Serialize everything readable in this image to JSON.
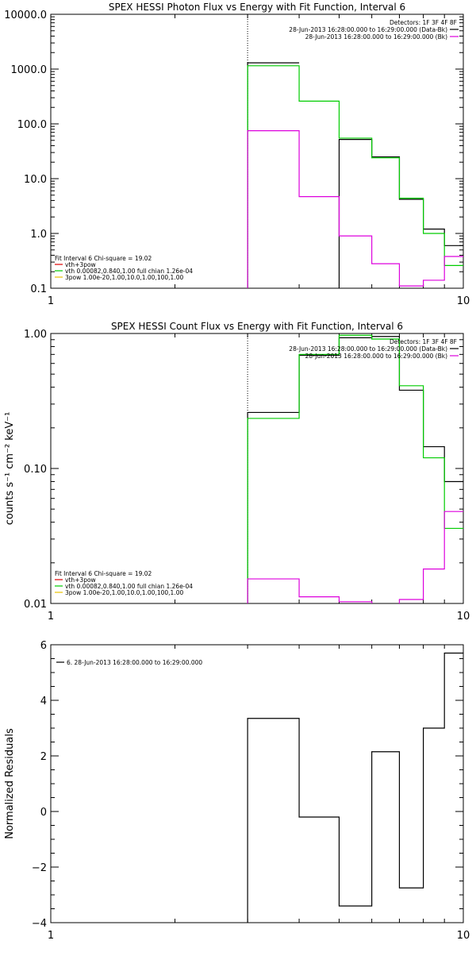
{
  "chart_data": [
    {
      "type": "line",
      "title": "SPEX HESSI Photon Flux vs Energy with Fit Function, Interval 6",
      "xlabel": "",
      "ylabel": "",
      "xscale": "log",
      "yscale": "log",
      "xlim": [
        1,
        10
      ],
      "ylim": [
        0.1,
        10000
      ],
      "x_ticks": [
        {
          "v": 1,
          "label": "1"
        },
        {
          "v": 10,
          "label": "10"
        }
      ],
      "y_ticks": [
        {
          "v": 0.1,
          "label": "0.1"
        },
        {
          "v": 1,
          "label": "1.0"
        },
        {
          "v": 10,
          "label": "10.0"
        },
        {
          "v": 100,
          "label": "100.0"
        },
        {
          "v": 1000,
          "label": "1000.0"
        },
        {
          "v": 10000,
          "label": "10000.0"
        }
      ],
      "vline_x": 3,
      "bin_edges": [
        3,
        4,
        5,
        6,
        7,
        8,
        9,
        10
      ],
      "series": [
        {
          "key": "data",
          "color": "#000000",
          "values": [
            1300,
            null,
            52,
            25,
            4.2,
            1.2,
            0.6
          ]
        },
        {
          "key": "total",
          "color": "#00cc00",
          "values": [
            1150,
            260,
            55,
            24,
            4.4,
            1.0,
            0.26
          ]
        },
        {
          "key": "comp",
          "color": "#dd00dd",
          "values": [
            75,
            4.7,
            0.9,
            0.28,
            0.11,
            0.14,
            0.38
          ]
        }
      ],
      "legend_tr": {
        "header": "Detectors: 1F 3F 4F 8F",
        "entries": [
          {
            "text": "28-Jun-2013 16:28:00.000 to 16:29:00.000 (Data-Bk)",
            "color": "#000000"
          },
          {
            "text": "28-Jun-2013 16:28:00.000 to 16:29:00.000 (Bk)",
            "color": "#dd00dd"
          }
        ]
      },
      "legend_bl": {
        "header": "Fit Interval 6   Chi-square = 19.02",
        "entries": [
          {
            "text": "vth+3pow",
            "color": "#dd0000"
          },
          {
            "text": "vth 0.00082,0.840,1.00   full chian 1.26e-04",
            "color": "#00cc00"
          },
          {
            "text": "3pow 1.00e-20,1.00,10.0,1.00,100,1.00",
            "color": "#e8c000"
          }
        ]
      }
    },
    {
      "type": "line",
      "title": "SPEX HESSI Count Flux vs Energy with Fit Function, Interval 6",
      "xlabel": "",
      "ylabel": "counts s⁻¹ cm⁻² keV⁻¹",
      "xscale": "log",
      "yscale": "log",
      "xlim": [
        1,
        10
      ],
      "ylim": [
        0.01,
        1.0
      ],
      "x_ticks": [
        {
          "v": 1,
          "label": "1"
        },
        {
          "v": 10,
          "label": "10"
        }
      ],
      "y_ticks": [
        {
          "v": 0.01,
          "label": "0.01"
        },
        {
          "v": 0.1,
          "label": "0.10"
        },
        {
          "v": 1,
          "label": "1.00"
        }
      ],
      "vline_x": 3,
      "bin_edges": [
        3,
        4,
        5,
        6,
        7,
        8,
        9,
        10
      ],
      "series": [
        {
          "key": "data",
          "color": "#000000",
          "values": [
            0.26,
            0.69,
            0.93,
            0.95,
            0.38,
            0.145,
            0.08
          ]
        },
        {
          "key": "total",
          "color": "#00cc00",
          "values": [
            0.235,
            0.7,
            0.97,
            0.91,
            0.41,
            0.12,
            0.036
          ]
        },
        {
          "key": "comp",
          "color": "#dd00dd",
          "values": [
            0.0152,
            0.0112,
            0.0103,
            0.0099,
            0.0107,
            0.018,
            0.048
          ]
        }
      ],
      "legend_tr": {
        "header": "Detectors: 1F 3F 4F 8F",
        "entries": [
          {
            "text": "28-Jun-2013 16:28:00.000 to 16:29:00.000 (Data-Bk)",
            "color": "#000000"
          },
          {
            "text": "28-Jun-2013 16:28:00.000 to 16:29:00.000 (Bk)",
            "color": "#dd00dd"
          }
        ]
      },
      "legend_bl": {
        "header": "Fit Interval 6   Chi-square = 19.02",
        "entries": [
          {
            "text": "vth+3pow",
            "color": "#dd0000"
          },
          {
            "text": "vth 0.00082,0.840,1.00   full chian 1.26e-04",
            "color": "#00cc00"
          },
          {
            "text": "3pow 1.00e-20,1.00,10.0,1.00,100,1.00",
            "color": "#e8c000"
          }
        ]
      }
    },
    {
      "type": "line",
      "title": "",
      "xlabel": "",
      "ylabel": "Normalized Residuals",
      "xscale": "log",
      "yscale": "linear",
      "xlim": [
        1,
        10
      ],
      "ylim": [
        -4,
        6
      ],
      "x_ticks": [
        {
          "v": 1,
          "label": "1"
        },
        {
          "v": 10,
          "label": "10"
        }
      ],
      "y_ticks": [
        {
          "v": -4,
          "label": "−4"
        },
        {
          "v": -2,
          "label": "−2"
        },
        {
          "v": 0,
          "label": "0"
        },
        {
          "v": 2,
          "label": "2"
        },
        {
          "v": 4,
          "label": "4"
        },
        {
          "v": 6,
          "label": "6"
        }
      ],
      "bin_edges": [
        3,
        4,
        5,
        6,
        7,
        8,
        9,
        10
      ],
      "series": [
        {
          "key": "residuals",
          "color": "#000000",
          "values": [
            3.35,
            -0.2,
            -3.4,
            2.15,
            -2.75,
            3.0,
            5.7
          ]
        }
      ],
      "legend_tl": {
        "entries": [
          {
            "text": "6. 28-Jun-2013 16:28:00.000 to 16:29:00.000",
            "color": "#000000"
          }
        ]
      }
    }
  ]
}
